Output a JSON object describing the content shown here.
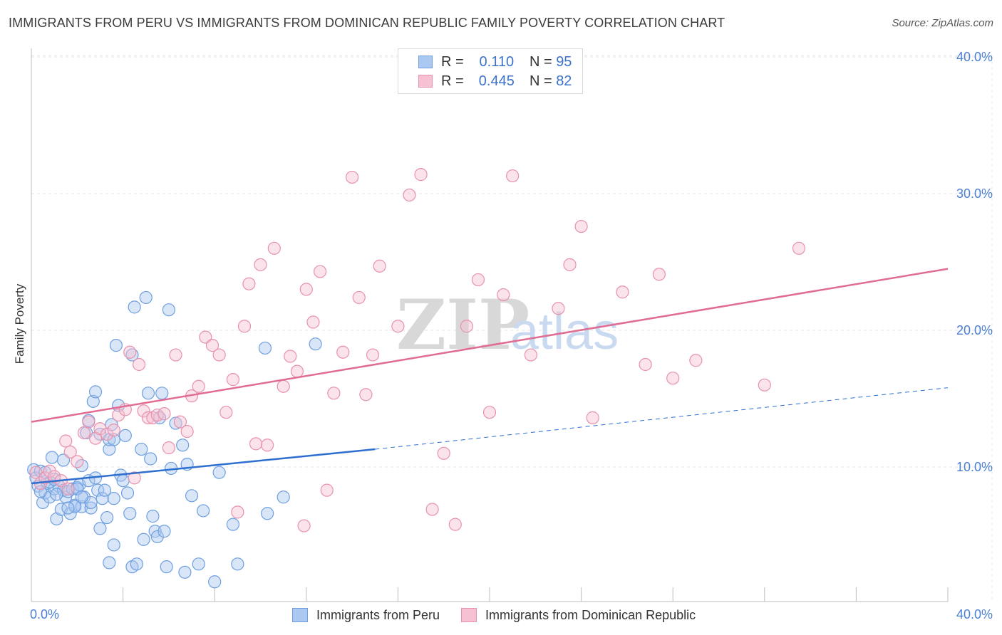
{
  "title": "IMMIGRANTS FROM PERU VS IMMIGRANTS FROM DOMINICAN REPUBLIC FAMILY POVERTY CORRELATION CHART",
  "source": "Source: ZipAtlas.com",
  "watermark": {
    "zip": "ZIP",
    "atlas": "atlas"
  },
  "legend": {
    "rows": [
      {
        "r_label": "R =",
        "r_value": "0.110",
        "n_label": "N =",
        "n_value": "95"
      },
      {
        "r_label": "R =",
        "r_value": "0.445",
        "n_label": "N =",
        "n_value": "82"
      }
    ]
  },
  "chart_data": {
    "type": "scatter",
    "xlabel": "",
    "ylabel": "Family Poverty",
    "xlim": [
      0,
      40
    ],
    "ylim": [
      0,
      40
    ],
    "x_tick_labels": [
      "0.0%",
      "40.0%"
    ],
    "y_ticks": [
      {
        "value": 10,
        "label": "10.0%"
      },
      {
        "value": 20,
        "label": "20.0%"
      },
      {
        "value": 30,
        "label": "30.0%"
      },
      {
        "value": 40,
        "label": "40.0%"
      }
    ],
    "grid": true,
    "legend_position": "top-center",
    "series": [
      {
        "name": "Immigrants from Peru",
        "color": "#6f9fe0",
        "fill": "#aac8f0",
        "line_color": "#2d6fd0",
        "R": 0.11,
        "N": 95,
        "trend_solid": {
          "x": [
            0,
            15
          ],
          "y": [
            8.8,
            11.3
          ]
        },
        "trend_dashed": {
          "x": [
            15,
            40
          ],
          "y": [
            11.3,
            15.8
          ]
        },
        "points": [
          [
            0.1,
            9.8
          ],
          [
            0.2,
            9.2
          ],
          [
            0.3,
            8.6
          ],
          [
            0.4,
            9.7
          ],
          [
            0.5,
            7.4
          ],
          [
            0.6,
            8.1
          ],
          [
            0.7,
            8.8
          ],
          [
            0.8,
            7.8
          ],
          [
            0.9,
            10.7
          ],
          [
            1.0,
            8.4
          ],
          [
            1.1,
            6.2
          ],
          [
            1.2,
            8.6
          ],
          [
            1.3,
            6.9
          ],
          [
            1.4,
            10.5
          ],
          [
            1.4,
            8.3
          ],
          [
            1.5,
            7.8
          ],
          [
            1.6,
            8.2
          ],
          [
            1.7,
            6.6
          ],
          [
            1.8,
            8.4
          ],
          [
            1.9,
            7.2
          ],
          [
            2.0,
            8.5
          ],
          [
            2.1,
            8.7
          ],
          [
            2.2,
            7.1
          ],
          [
            2.2,
            10.1
          ],
          [
            2.3,
            7.8
          ],
          [
            2.4,
            12.5
          ],
          [
            2.5,
            9.0
          ],
          [
            2.5,
            13.4
          ],
          [
            2.6,
            7.0
          ],
          [
            2.6,
            7.4
          ],
          [
            2.7,
            14.8
          ],
          [
            2.8,
            9.2
          ],
          [
            2.8,
            15.5
          ],
          [
            2.9,
            8.3
          ],
          [
            3.0,
            5.5
          ],
          [
            3.0,
            12.4
          ],
          [
            3.1,
            7.7
          ],
          [
            3.2,
            8.3
          ],
          [
            3.3,
            6.3
          ],
          [
            3.4,
            11.3
          ],
          [
            3.4,
            12.0
          ],
          [
            3.4,
            3.0
          ],
          [
            3.5,
            13.1
          ],
          [
            3.6,
            7.7
          ],
          [
            3.6,
            4.3
          ],
          [
            3.7,
            18.9
          ],
          [
            3.8,
            14.5
          ],
          [
            3.9,
            9.4
          ],
          [
            4.0,
            9.0
          ],
          [
            4.1,
            12.3
          ],
          [
            4.2,
            8.1
          ],
          [
            4.3,
            6.6
          ],
          [
            4.4,
            18.2
          ],
          [
            4.4,
            2.7
          ],
          [
            4.5,
            21.7
          ],
          [
            4.6,
            2.9
          ],
          [
            4.8,
            11.3
          ],
          [
            4.9,
            4.7
          ],
          [
            5.0,
            22.4
          ],
          [
            5.1,
            15.4
          ],
          [
            5.2,
            10.6
          ],
          [
            5.3,
            6.4
          ],
          [
            5.4,
            5.3
          ],
          [
            5.5,
            4.9
          ],
          [
            5.6,
            13.6
          ],
          [
            5.7,
            15.4
          ],
          [
            5.8,
            5.3
          ],
          [
            5.9,
            2.7
          ],
          [
            6.0,
            21.5
          ],
          [
            6.1,
            9.9
          ],
          [
            6.3,
            13.2
          ],
          [
            6.6,
            11.6
          ],
          [
            6.7,
            2.3
          ],
          [
            6.8,
            10.2
          ],
          [
            7.0,
            7.9
          ],
          [
            7.3,
            2.9
          ],
          [
            7.5,
            6.8
          ],
          [
            8.0,
            1.6
          ],
          [
            8.2,
            9.6
          ],
          [
            8.8,
            5.8
          ],
          [
            9.0,
            2.9
          ],
          [
            10.2,
            18.7
          ],
          [
            10.3,
            6.6
          ],
          [
            11.0,
            7.8
          ],
          [
            12.4,
            19.0
          ],
          [
            1.9,
            7.1
          ],
          [
            2.0,
            8.4
          ],
          [
            1.1,
            8.0
          ],
          [
            1.6,
            7.0
          ],
          [
            0.8,
            8.9
          ],
          [
            0.4,
            8.2
          ],
          [
            3.6,
            12.0
          ],
          [
            2.2,
            7.8
          ],
          [
            1.0,
            9.1
          ],
          [
            0.6,
            9.6
          ]
        ]
      },
      {
        "name": "Immigrants from Dominican Republic",
        "color": "#e891ac",
        "fill": "#f6c2d3",
        "line_color": "#e06c93",
        "R": 0.445,
        "N": 82,
        "trend_solid": {
          "x": [
            0,
            40
          ],
          "y": [
            13.3,
            24.5
          ]
        },
        "points": [
          [
            0.2,
            9.6
          ],
          [
            0.4,
            8.8
          ],
          [
            0.6,
            9.2
          ],
          [
            0.8,
            9.7
          ],
          [
            1.0,
            9.3
          ],
          [
            1.3,
            9.0
          ],
          [
            1.5,
            11.9
          ],
          [
            1.6,
            8.4
          ],
          [
            1.7,
            11.1
          ],
          [
            2.0,
            10.4
          ],
          [
            2.3,
            12.5
          ],
          [
            2.5,
            13.3
          ],
          [
            2.8,
            12.1
          ],
          [
            3.0,
            12.8
          ],
          [
            3.3,
            12.4
          ],
          [
            3.6,
            12.7
          ],
          [
            3.8,
            13.8
          ],
          [
            4.1,
            14.2
          ],
          [
            4.3,
            18.4
          ],
          [
            4.5,
            9.2
          ],
          [
            4.7,
            17.5
          ],
          [
            4.9,
            14.1
          ],
          [
            5.1,
            13.6
          ],
          [
            5.3,
            13.6
          ],
          [
            5.5,
            13.8
          ],
          [
            5.8,
            13.9
          ],
          [
            6.0,
            11.4
          ],
          [
            6.3,
            18.2
          ],
          [
            6.5,
            13.3
          ],
          [
            6.8,
            12.6
          ],
          [
            7.0,
            15.2
          ],
          [
            7.3,
            15.9
          ],
          [
            7.6,
            19.5
          ],
          [
            7.9,
            18.9
          ],
          [
            8.2,
            18.2
          ],
          [
            8.5,
            14.0
          ],
          [
            8.8,
            16.4
          ],
          [
            9.0,
            6.7
          ],
          [
            9.3,
            20.3
          ],
          [
            9.5,
            23.4
          ],
          [
            9.8,
            11.7
          ],
          [
            10.0,
            24.8
          ],
          [
            10.3,
            11.6
          ],
          [
            10.6,
            26.0
          ],
          [
            11.0,
            15.9
          ],
          [
            11.3,
            18.1
          ],
          [
            11.6,
            17.0
          ],
          [
            11.9,
            5.7
          ],
          [
            12.0,
            23.0
          ],
          [
            12.3,
            20.6
          ],
          [
            12.6,
            24.3
          ],
          [
            12.9,
            8.3
          ],
          [
            13.2,
            15.4
          ],
          [
            13.6,
            18.4
          ],
          [
            14.0,
            31.2
          ],
          [
            14.3,
            22.4
          ],
          [
            14.6,
            15.3
          ],
          [
            14.9,
            18.2
          ],
          [
            15.2,
            24.7
          ],
          [
            16.0,
            20.3
          ],
          [
            16.5,
            29.9
          ],
          [
            17.0,
            31.4
          ],
          [
            17.5,
            6.9
          ],
          [
            18.0,
            11.0
          ],
          [
            18.5,
            5.8
          ],
          [
            19.0,
            20.3
          ],
          [
            19.5,
            23.7
          ],
          [
            20.0,
            14.0
          ],
          [
            20.6,
            22.6
          ],
          [
            21.0,
            31.3
          ],
          [
            21.8,
            18.2
          ],
          [
            23.0,
            21.6
          ],
          [
            23.5,
            24.8
          ],
          [
            24.0,
            27.6
          ],
          [
            24.5,
            13.6
          ],
          [
            25.8,
            22.8
          ],
          [
            26.8,
            17.5
          ],
          [
            27.4,
            24.1
          ],
          [
            28.0,
            16.5
          ],
          [
            29.0,
            17.8
          ],
          [
            32.0,
            16.0
          ],
          [
            33.5,
            26.0
          ]
        ]
      }
    ]
  }
}
